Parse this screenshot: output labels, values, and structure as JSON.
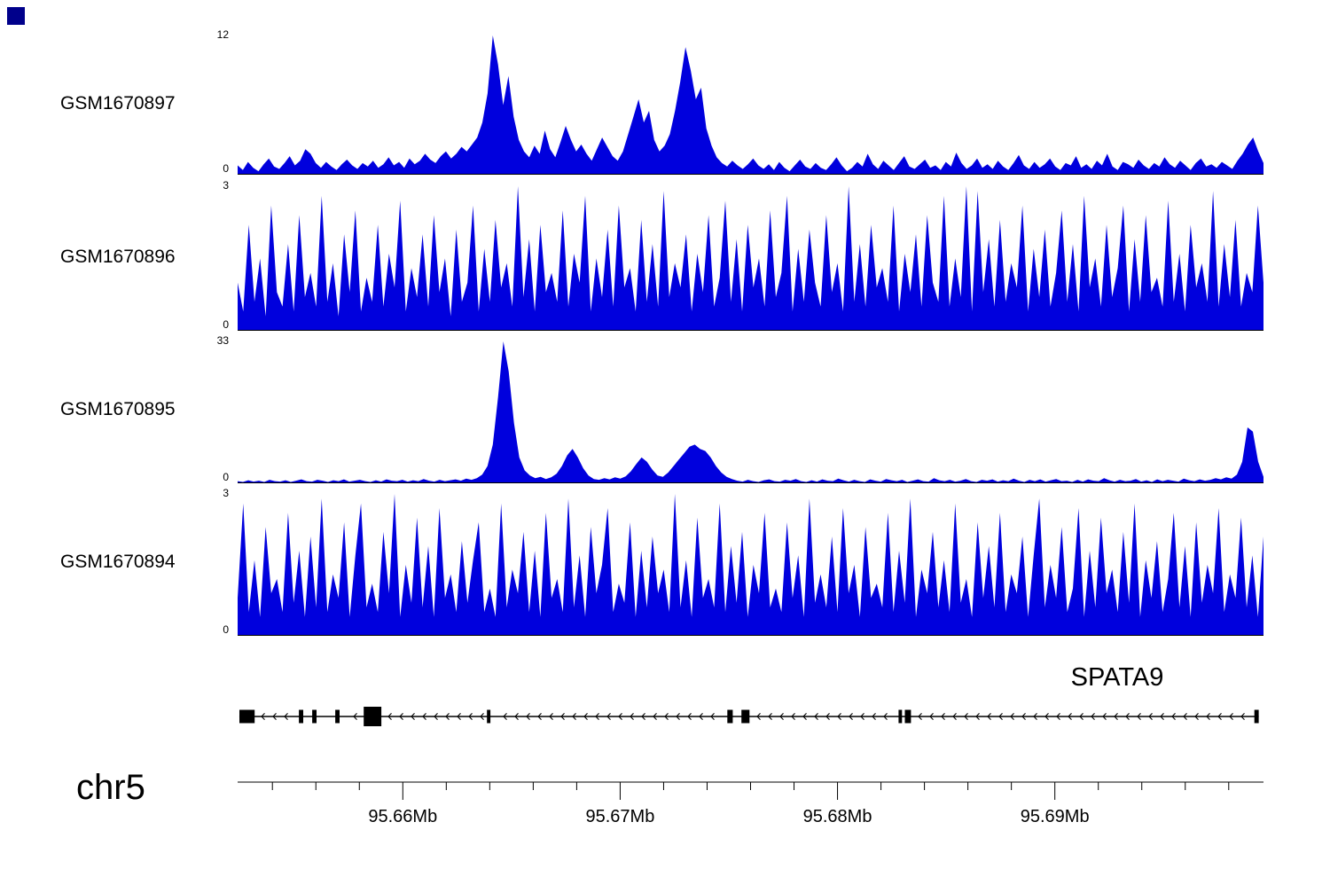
{
  "figure": {
    "chromosome_label": "chr5",
    "corner_marker_color": "#00008b"
  },
  "chart_data": {
    "type": "area",
    "title": "",
    "chromosome": "chr5",
    "x_unit": "Mb",
    "xlim_mb": [
      95.6524,
      95.6996
    ],
    "x_ticks": [
      {
        "pos_mb": 95.66,
        "label": "95.66Mb"
      },
      {
        "pos_mb": 95.67,
        "label": "95.67Mb"
      },
      {
        "pos_mb": 95.68,
        "label": "95.68Mb"
      },
      {
        "pos_mb": 95.69,
        "label": "95.69Mb"
      }
    ],
    "x_minor_ticks_mb": [
      95.654,
      95.656,
      95.658,
      95.662,
      95.664,
      95.666,
      95.668,
      95.672,
      95.674,
      95.676,
      95.678,
      95.682,
      95.684,
      95.686,
      95.688,
      95.692,
      95.694,
      95.696,
      95.698
    ],
    "tracks": [
      {
        "name": "GSM1670897",
        "ylim": [
          0,
          12
        ],
        "ymax_label": "12",
        "ymin_label": "0",
        "color": "#0000dd",
        "values": [
          0.8,
          0.4,
          1.1,
          0.6,
          0.3,
          0.9,
          1.4,
          0.7,
          0.5,
          1.0,
          1.6,
          0.8,
          1.2,
          2.2,
          1.8,
          1.0,
          0.6,
          1.1,
          0.7,
          0.4,
          0.9,
          1.3,
          0.8,
          0.5,
          1.0,
          0.7,
          1.2,
          0.6,
          0.9,
          1.5,
          0.8,
          1.1,
          0.6,
          1.4,
          0.9,
          1.2,
          1.8,
          1.3,
          1.0,
          1.6,
          2.0,
          1.4,
          1.8,
          2.4,
          2.0,
          2.6,
          3.2,
          4.5,
          7.0,
          12.0,
          9.5,
          6.0,
          8.5,
          5.0,
          3.0,
          2.0,
          1.5,
          2.5,
          1.8,
          3.8,
          2.2,
          1.5,
          2.8,
          4.2,
          3.0,
          2.0,
          2.6,
          1.8,
          1.2,
          2.2,
          3.2,
          2.4,
          1.6,
          1.2,
          2.0,
          3.5,
          5.0,
          6.5,
          4.5,
          5.5,
          3.0,
          2.0,
          2.5,
          3.5,
          5.5,
          8.0,
          11.0,
          9.0,
          6.5,
          7.5,
          4.0,
          2.5,
          1.5,
          1.0,
          0.7,
          1.2,
          0.8,
          0.5,
          0.9,
          1.4,
          0.8,
          0.5,
          0.9,
          0.4,
          1.1,
          0.6,
          0.3,
          0.8,
          1.3,
          0.7,
          0.5,
          1.0,
          0.6,
          0.4,
          0.9,
          1.5,
          0.8,
          0.3,
          0.6,
          1.1,
          0.7,
          1.8,
          0.9,
          0.5,
          1.2,
          0.8,
          0.4,
          1.0,
          1.6,
          0.7,
          0.5,
          0.9,
          1.3,
          0.6,
          0.8,
          0.4,
          1.1,
          0.7,
          1.9,
          1.0,
          0.5,
          0.8,
          1.4,
          0.6,
          0.9,
          0.5,
          1.2,
          0.7,
          0.4,
          1.0,
          1.7,
          0.8,
          0.5,
          1.1,
          0.6,
          0.9,
          1.4,
          0.7,
          0.4,
          1.0,
          0.8,
          1.6,
          0.6,
          0.9,
          0.5,
          1.2,
          0.8,
          1.8,
          0.7,
          0.4,
          1.1,
          0.9,
          0.6,
          1.3,
          0.8,
          0.5,
          1.0,
          0.7,
          1.5,
          0.9,
          0.6,
          1.2,
          0.8,
          0.4,
          1.0,
          1.4,
          0.7,
          0.9,
          0.6,
          1.1,
          0.8,
          0.5,
          1.2,
          1.8,
          2.6,
          3.2,
          2.0,
          1.0
        ]
      },
      {
        "name": "GSM1670896",
        "ylim": [
          0,
          3
        ],
        "ymax_label": "3",
        "ymin_label": "0",
        "color": "#0000dd",
        "values": [
          1.0,
          0.4,
          2.2,
          0.6,
          1.5,
          0.3,
          2.6,
          0.8,
          0.5,
          1.8,
          0.4,
          2.4,
          0.7,
          1.2,
          0.5,
          2.8,
          0.6,
          1.4,
          0.3,
          2.0,
          0.8,
          2.5,
          0.4,
          1.1,
          0.6,
          2.2,
          0.5,
          1.6,
          0.9,
          2.7,
          0.4,
          1.3,
          0.7,
          2.0,
          0.5,
          2.4,
          0.8,
          1.5,
          0.3,
          2.1,
          0.6,
          1.0,
          2.6,
          0.4,
          1.7,
          0.6,
          2.3,
          0.9,
          1.4,
          0.5,
          3.0,
          0.7,
          1.9,
          0.4,
          2.2,
          0.8,
          1.2,
          0.6,
          2.5,
          0.5,
          1.6,
          1.0,
          2.8,
          0.4,
          1.5,
          0.7,
          2.1,
          0.5,
          2.6,
          0.9,
          1.3,
          0.4,
          2.3,
          0.6,
          1.8,
          0.5,
          2.9,
          0.7,
          1.4,
          0.9,
          2.0,
          0.4,
          1.6,
          0.8,
          2.4,
          0.5,
          1.1,
          2.7,
          0.6,
          1.9,
          0.4,
          2.2,
          0.9,
          1.5,
          0.5,
          2.5,
          0.7,
          1.2,
          2.8,
          0.4,
          1.7,
          0.6,
          2.1,
          1.0,
          0.5,
          2.4,
          0.8,
          1.4,
          0.4,
          3.0,
          0.6,
          1.8,
          0.5,
          2.2,
          0.9,
          1.3,
          0.6,
          2.6,
          0.4,
          1.6,
          0.8,
          2.0,
          0.5,
          2.4,
          1.0,
          0.6,
          2.8,
          0.5,
          1.5,
          0.7,
          3.0,
          0.4,
          2.9,
          0.8,
          1.9,
          0.5,
          2.3,
          0.6,
          1.4,
          0.9,
          2.6,
          0.4,
          1.7,
          0.7,
          2.1,
          0.5,
          1.2,
          2.5,
          0.6,
          1.8,
          0.4,
          2.8,
          0.9,
          1.5,
          0.5,
          2.2,
          0.7,
          1.3,
          2.6,
          0.4,
          1.9,
          0.6,
          2.4,
          0.8,
          1.1,
          0.5,
          2.7,
          0.6,
          1.6,
          0.4,
          2.2,
          0.9,
          1.4,
          0.6,
          2.9,
          0.5,
          1.8,
          0.7,
          2.3,
          0.5,
          1.2,
          0.8,
          2.6,
          1.0
        ]
      },
      {
        "name": "GSM1670895",
        "ylim": [
          0,
          33
        ],
        "ymax_label": "33",
        "ymin_label": "0",
        "color": "#0000dd",
        "values": [
          0.5,
          0.3,
          0.7,
          0.4,
          0.6,
          0.3,
          0.8,
          0.5,
          0.4,
          0.7,
          0.3,
          0.6,
          0.9,
          0.5,
          0.4,
          0.8,
          0.6,
          0.3,
          0.7,
          0.5,
          0.9,
          0.4,
          0.6,
          0.8,
          0.5,
          0.3,
          0.7,
          0.4,
          0.9,
          0.6,
          0.5,
          0.8,
          0.4,
          0.7,
          0.5,
          1.0,
          0.6,
          0.4,
          0.8,
          0.5,
          0.7,
          0.9,
          0.6,
          1.1,
          0.8,
          1.2,
          2.0,
          4.0,
          9.0,
          20.0,
          33.0,
          26.0,
          14.0,
          6.0,
          3.0,
          1.8,
          1.2,
          1.5,
          1.0,
          1.4,
          2.2,
          4.0,
          6.5,
          8.0,
          6.0,
          3.5,
          1.8,
          1.0,
          0.8,
          1.2,
          0.9,
          1.4,
          1.1,
          1.6,
          2.8,
          4.5,
          6.0,
          5.0,
          3.2,
          1.8,
          1.5,
          2.5,
          4.0,
          5.5,
          7.0,
          8.5,
          9.0,
          8.0,
          7.5,
          6.0,
          4.0,
          2.5,
          1.5,
          1.0,
          0.6,
          0.4,
          0.8,
          0.5,
          0.3,
          0.7,
          0.9,
          0.5,
          0.4,
          0.8,
          0.6,
          1.0,
          0.5,
          0.3,
          0.7,
          0.4,
          0.9,
          0.6,
          0.5,
          1.1,
          0.7,
          0.4,
          0.8,
          0.5,
          0.3,
          0.9,
          0.6,
          0.4,
          1.0,
          0.7,
          0.5,
          0.8,
          0.3,
          0.6,
          0.9,
          0.5,
          0.4,
          1.2,
          0.7,
          0.5,
          0.8,
          0.4,
          0.6,
          1.0,
          0.5,
          0.3,
          0.8,
          0.6,
          0.9,
          0.4,
          0.7,
          0.5,
          1.1,
          0.6,
          0.3,
          0.8,
          0.5,
          0.9,
          0.4,
          0.7,
          1.0,
          0.5,
          0.6,
          0.3,
          0.8,
          0.4,
          0.9,
          0.6,
          0.5,
          1.2,
          0.7,
          0.4,
          0.8,
          0.5,
          0.6,
          1.0,
          0.4,
          0.7,
          0.3,
          0.9,
          0.5,
          0.8,
          0.6,
          0.4,
          1.1,
          0.7,
          0.5,
          0.9,
          0.6,
          0.8,
          1.2,
          0.9,
          1.4,
          1.1,
          2.0,
          5.0,
          13.0,
          12.0,
          5.0,
          1.5
        ]
      },
      {
        "name": "GSM1670894",
        "ylim": [
          0,
          3
        ],
        "ymax_label": "3",
        "ymin_label": "0",
        "color": "#0000dd",
        "values": [
          0.8,
          2.8,
          0.5,
          1.6,
          0.4,
          2.3,
          0.9,
          1.2,
          0.5,
          2.6,
          0.7,
          1.8,
          0.4,
          2.1,
          0.6,
          2.9,
          0.5,
          1.3,
          0.8,
          2.4,
          0.4,
          1.7,
          2.8,
          0.6,
          1.1,
          0.5,
          2.2,
          0.9,
          3.0,
          0.4,
          1.5,
          0.7,
          2.5,
          0.6,
          1.9,
          0.4,
          2.7,
          0.8,
          1.3,
          0.5,
          2.0,
          0.7,
          1.6,
          2.4,
          0.5,
          1.0,
          0.4,
          2.8,
          0.6,
          1.4,
          0.9,
          2.2,
          0.5,
          1.8,
          0.4,
          2.6,
          0.8,
          1.2,
          0.5,
          2.9,
          0.6,
          1.7,
          0.4,
          2.3,
          0.9,
          1.5,
          2.7,
          0.5,
          1.1,
          0.7,
          2.4,
          0.4,
          1.8,
          0.6,
          2.1,
          0.9,
          1.4,
          0.5,
          3.0,
          0.6,
          1.6,
          0.4,
          2.5,
          0.8,
          1.2,
          0.6,
          2.8,
          0.5,
          1.9,
          0.7,
          2.2,
          0.4,
          1.5,
          0.9,
          2.6,
          0.6,
          1.0,
          0.5,
          2.4,
          0.8,
          1.7,
          0.4,
          2.9,
          0.7,
          1.3,
          0.6,
          2.1,
          0.5,
          2.7,
          0.9,
          1.5,
          0.4,
          2.3,
          0.8,
          1.1,
          0.6,
          2.6,
          0.5,
          1.8,
          0.7,
          2.9,
          0.4,
          1.4,
          0.9,
          2.2,
          0.6,
          1.6,
          0.5,
          2.8,
          0.7,
          1.2,
          0.4,
          2.4,
          0.8,
          1.9,
          0.6,
          2.6,
          0.5,
          1.3,
          0.9,
          2.1,
          0.4,
          1.7,
          2.9,
          0.6,
          1.5,
          0.8,
          2.3,
          0.5,
          1.0,
          2.7,
          0.4,
          1.8,
          0.6,
          2.5,
          0.9,
          1.4,
          0.5,
          2.2,
          0.7,
          2.8,
          0.4,
          1.6,
          0.8,
          2.0,
          0.5,
          1.2,
          2.6,
          0.6,
          1.9,
          0.4,
          2.4,
          0.7,
          1.5,
          0.9,
          2.7,
          0.5,
          1.3,
          0.8,
          2.5,
          0.6,
          1.7,
          0.4,
          2.1
        ]
      }
    ],
    "gene_track": {
      "gene": "SPATA9",
      "strand": "-",
      "exons": [
        {
          "start_mb": 95.65248,
          "end_mb": 95.65318,
          "tall": false
        },
        {
          "start_mb": 95.65522,
          "end_mb": 95.65542,
          "tall": false
        },
        {
          "start_mb": 95.65583,
          "end_mb": 95.65603,
          "tall": false
        },
        {
          "start_mb": 95.65689,
          "end_mb": 95.65709,
          "tall": false
        },
        {
          "start_mb": 95.6582,
          "end_mb": 95.65901,
          "tall": true
        },
        {
          "start_mb": 95.66387,
          "end_mb": 95.66403,
          "tall": false
        },
        {
          "start_mb": 95.67493,
          "end_mb": 95.67518,
          "tall": false
        },
        {
          "start_mb": 95.67558,
          "end_mb": 95.67595,
          "tall": false
        },
        {
          "start_mb": 95.68281,
          "end_mb": 95.68297,
          "tall": false
        },
        {
          "start_mb": 95.6831,
          "end_mb": 95.68338,
          "tall": false
        },
        {
          "start_mb": 95.69918,
          "end_mb": 95.69938,
          "tall": false
        }
      ]
    }
  }
}
